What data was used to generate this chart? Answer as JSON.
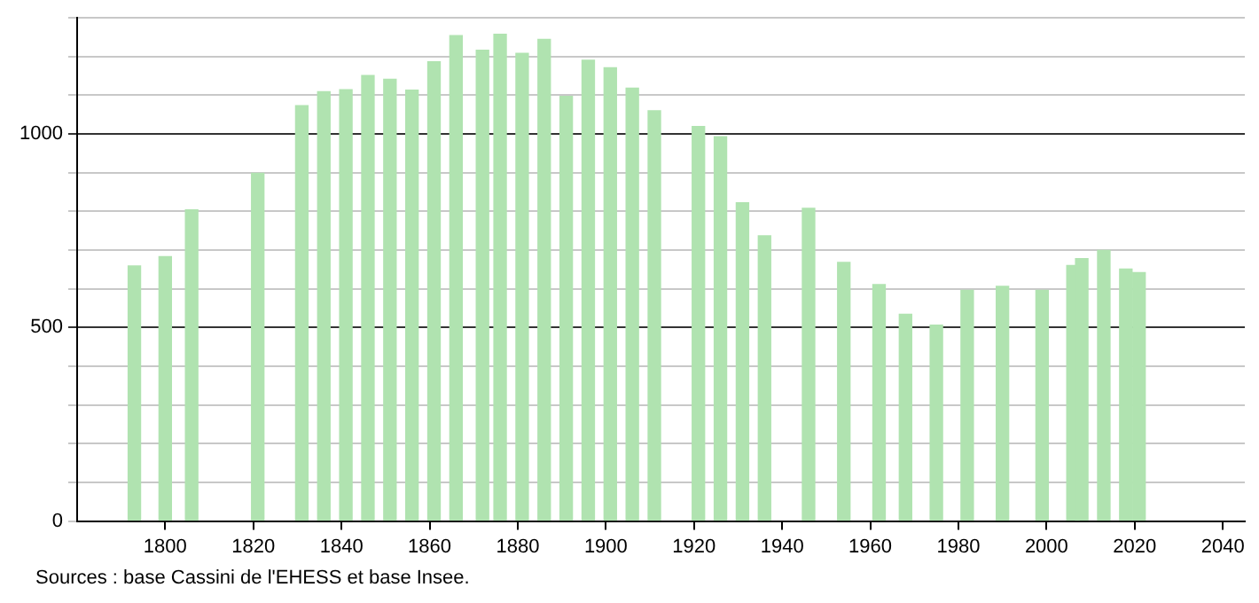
{
  "chart_data": {
    "type": "bar",
    "x": [
      1793,
      1800,
      1806,
      1821,
      1831,
      1836,
      1841,
      1846,
      1851,
      1856,
      1861,
      1866,
      1872,
      1876,
      1881,
      1886,
      1891,
      1896,
      1901,
      1906,
      1911,
      1921,
      1926,
      1931,
      1936,
      1946,
      1954,
      1962,
      1968,
      1975,
      1982,
      1990,
      1999,
      2006,
      2008,
      2013,
      2018,
      2021
    ],
    "values": [
      659,
      683,
      804,
      898,
      1073,
      1109,
      1114,
      1151,
      1141,
      1113,
      1186,
      1254,
      1216,
      1257,
      1208,
      1244,
      1097,
      1190,
      1171,
      1118,
      1060,
      1019,
      993,
      822,
      737,
      808,
      668,
      611,
      534,
      506,
      596,
      606,
      596,
      660,
      678,
      699,
      651,
      642
    ],
    "color": "#b0e3b0",
    "xlim": [
      1780,
      2045
    ],
    "xticks": [
      1800,
      1820,
      1840,
      1860,
      1880,
      1900,
      1920,
      1940,
      1960,
      1980,
      2000,
      2020,
      2040
    ],
    "ylim": [
      0,
      1300
    ],
    "yticks": [
      0,
      {
        "value": 100,
        "label": null
      },
      {
        "value": 200,
        "label": null
      },
      {
        "value": 300,
        "label": null
      },
      {
        "value": 400,
        "label": null
      },
      500,
      {
        "value": 600,
        "label": null
      },
      {
        "value": 700,
        "label": null
      },
      {
        "value": 800,
        "label": null
      },
      {
        "value": 900,
        "label": null
      },
      1000,
      {
        "value": 1100,
        "label": null
      },
      {
        "value": 1200,
        "label": null
      },
      {
        "value": 1300,
        "label": null
      }
    ],
    "grid": "y",
    "annotations": [
      "Sources : base Cassini de l'EHESS et base Insee."
    ]
  }
}
